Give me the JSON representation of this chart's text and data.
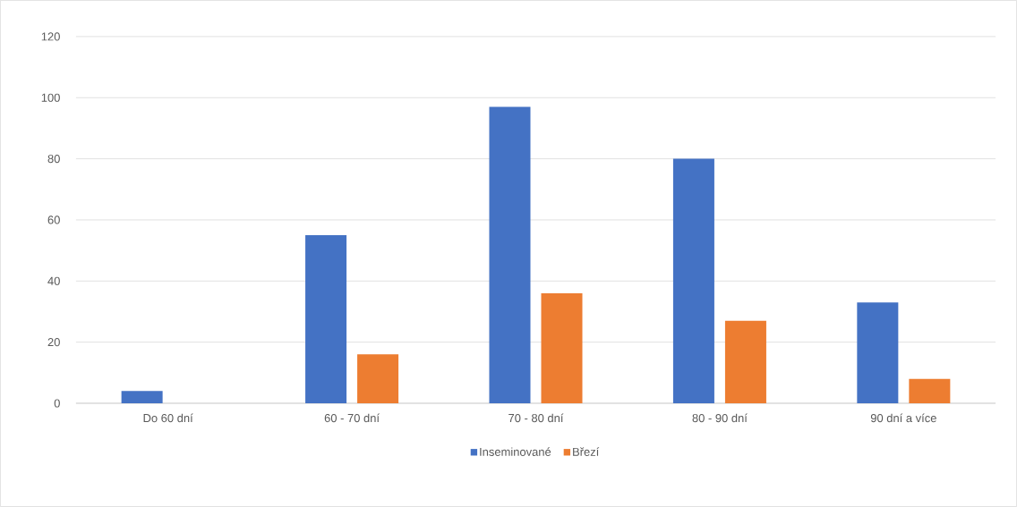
{
  "chart_data": {
    "type": "bar",
    "categories": [
      "Do 60 dní",
      "60 - 70 dní",
      "70 - 80 dní",
      "80 - 90 dní",
      "90 dní a více"
    ],
    "series": [
      {
        "name": "Inseminované",
        "color": "#4472c4",
        "values": [
          4,
          55,
          97,
          80,
          33
        ]
      },
      {
        "name": "Březí",
        "color": "#ed7d31",
        "values": [
          0,
          16,
          36,
          27,
          8
        ]
      }
    ],
    "ylim": [
      0,
      120
    ],
    "yticks": [
      0,
      20,
      40,
      60,
      80,
      100,
      120
    ],
    "grid": "y",
    "legend": "bottom"
  }
}
